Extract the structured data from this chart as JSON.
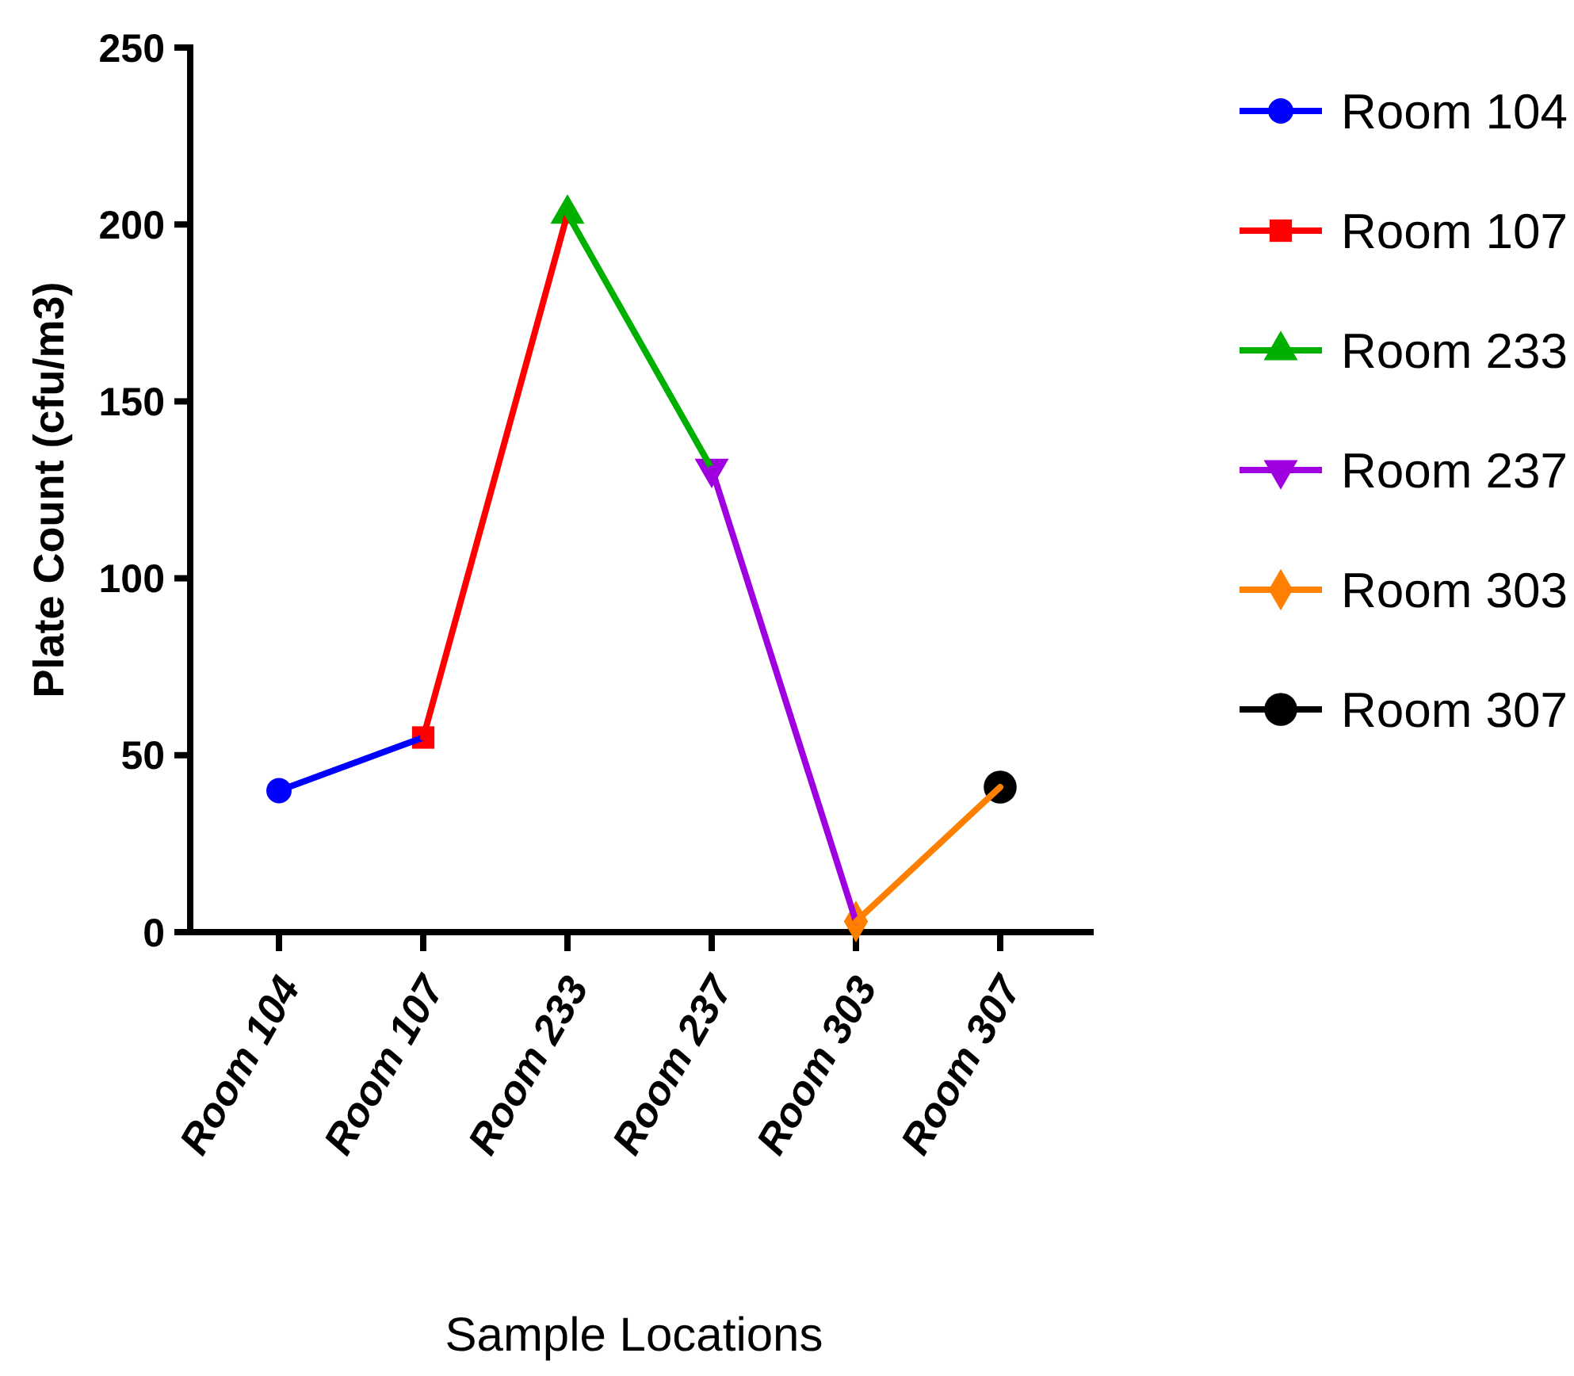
{
  "chart_data": {
    "type": "line",
    "xlabel": "Sample Locations",
    "ylabel": "Plate Count (cfu/m3)",
    "categories": [
      "Room 104",
      "Room 107",
      "Room 233",
      "Room 237",
      "Room 303",
      "Room 307"
    ],
    "ylim": [
      0,
      250
    ],
    "yticks": [
      0,
      50,
      100,
      150,
      200,
      250
    ],
    "grid": false,
    "legend": "right",
    "series": [
      {
        "name": "Room 104",
        "color": "#0000ff",
        "marker": "circle",
        "values": [
          40,
          55,
          null,
          null,
          null,
          null
        ]
      },
      {
        "name": "Room 107",
        "color": "#ff0000",
        "marker": "square",
        "values": [
          null,
          55,
          203,
          null,
          null,
          null
        ]
      },
      {
        "name": "Room 233",
        "color": "#00b000",
        "marker": "triangle",
        "values": [
          null,
          null,
          203,
          131,
          null,
          null
        ]
      },
      {
        "name": "Room 237",
        "color": "#a000e0",
        "marker": "triangle-down",
        "values": [
          null,
          null,
          null,
          131,
          3,
          null
        ]
      },
      {
        "name": "Room 303",
        "color": "#ff8000",
        "marker": "diamond",
        "values": [
          null,
          null,
          null,
          null,
          3,
          41
        ]
      },
      {
        "name": "Room 307",
        "color": "#000000",
        "marker": "circle",
        "values": [
          null,
          null,
          null,
          null,
          null,
          41
        ]
      }
    ]
  }
}
